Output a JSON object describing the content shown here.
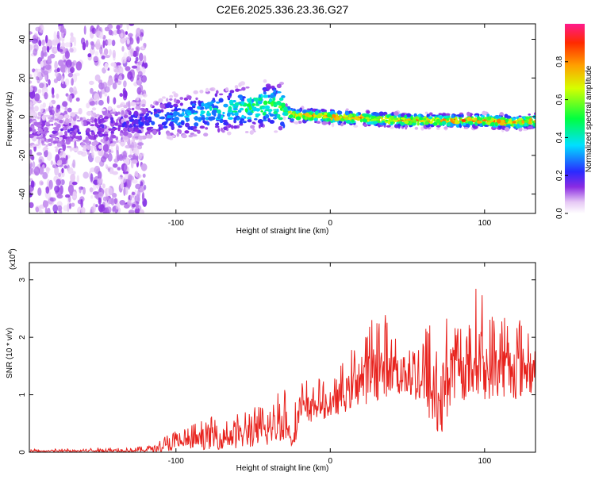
{
  "title": "C2E6.2025.336.23.36.G27",
  "chart_data": [
    {
      "type": "heatmap",
      "title": "C2E6.2025.336.23.36.G27",
      "xlabel": "Height of straight line (km)",
      "ylabel": "Frequency (Hz)",
      "xlim": [
        -195,
        133
      ],
      "ylim": [
        -50,
        48
      ],
      "x_ticks": [
        "-100",
        "0",
        "100"
      ],
      "x_tick_values": [
        -100,
        0,
        100
      ],
      "y_ticks": [
        "-40",
        "-20",
        "0",
        "20",
        "40"
      ],
      "y_tick_values": [
        -40,
        -20,
        0,
        20,
        40
      ],
      "grid": false,
      "ridge": {
        "description_points_x": [
          -195,
          -160,
          -130,
          -110,
          -90,
          -70,
          -50,
          -35,
          -25,
          0,
          25,
          50,
          75,
          100,
          120,
          133
        ],
        "frequency_center_hz": [
          -8,
          -8,
          -3,
          -1,
          1,
          3,
          5,
          6,
          1,
          0,
          -1,
          -2,
          -2,
          -2,
          -3,
          -2
        ],
        "amplitude_norm": [
          0.15,
          0.18,
          0.22,
          0.3,
          0.4,
          0.45,
          0.55,
          0.6,
          0.85,
          0.9,
          0.9,
          0.92,
          0.9,
          0.9,
          0.88,
          0.9
        ]
      },
      "colorbar": {
        "label": "Normalized spectral amplitude",
        "min": 0.0,
        "max": 1.0,
        "ticks": [
          "0.0",
          "0.2",
          "0.4",
          "0.6",
          "0.8"
        ],
        "tick_values": [
          0.0,
          0.2,
          0.4,
          0.6,
          0.8
        ]
      }
    },
    {
      "type": "line",
      "xlabel": "Height of straight line (km)",
      "ylabel": "SNR (10 * v/v)",
      "multiplier_label": "(x10",
      "multiplier_exp": "4",
      "xlim": [
        -195,
        133
      ],
      "ylim": [
        0,
        3.3
      ],
      "x_ticks": [
        "-100",
        "0",
        "100"
      ],
      "x_tick_values": [
        -100,
        0,
        100
      ],
      "y_ticks": [
        "0",
        "1",
        "2",
        "3"
      ],
      "y_tick_values": [
        0,
        1,
        2,
        3
      ],
      "series": [
        {
          "name": "SNR",
          "color": "#e8231e",
          "envelope_x": [
            -195,
            -150,
            -120,
            -100,
            -80,
            -60,
            -40,
            -30,
            -25,
            -20,
            -10,
            0,
            10,
            20,
            30,
            40,
            50,
            60,
            70,
            80,
            90,
            97,
            100,
            110,
            120,
            133
          ],
          "envelope_min": [
            0.0,
            0.0,
            0.0,
            0.02,
            0.05,
            0.05,
            0.1,
            0.2,
            0.05,
            0.35,
            0.55,
            0.6,
            0.7,
            0.8,
            0.9,
            1.0,
            0.9,
            0.8,
            0.05,
            0.9,
            0.9,
            1.0,
            0.9,
            0.95,
            0.9,
            1.0
          ],
          "envelope_max": [
            0.05,
            0.08,
            0.1,
            0.4,
            0.6,
            0.75,
            0.85,
            1.35,
            0.6,
            1.25,
            1.35,
            1.15,
            1.7,
            2.0,
            2.6,
            2.3,
            2.1,
            2.2,
            2.5,
            2.4,
            2.3,
            3.25,
            2.3,
            2.6,
            2.4,
            2.5
          ]
        }
      ]
    }
  ]
}
